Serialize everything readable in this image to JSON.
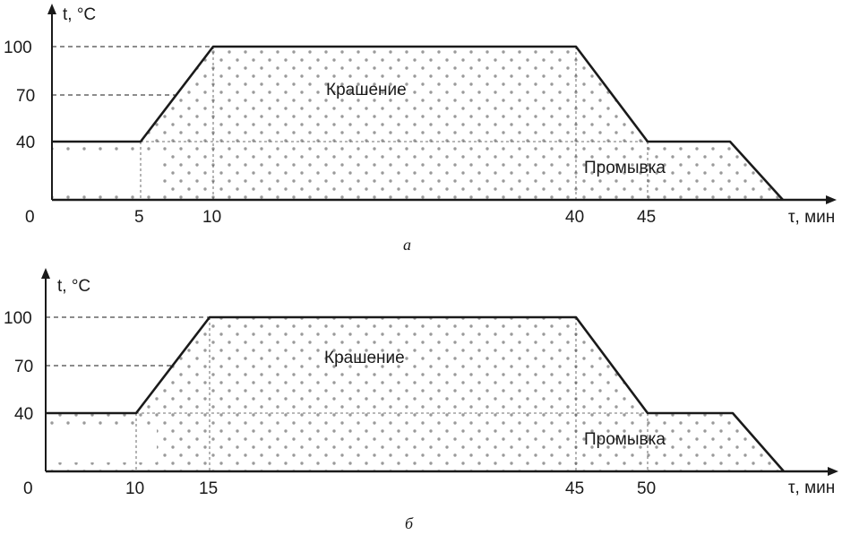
{
  "chart_data": [
    {
      "type": "area",
      "caption": "а",
      "ylabel": "t, °C",
      "xlabel": "τ, мин",
      "y_ticks": [
        "100",
        "70",
        "40",
        "0"
      ],
      "x_ticks": [
        "5",
        "10",
        "40",
        "45"
      ],
      "points": [
        [
          0,
          40
        ],
        [
          5,
          40
        ],
        [
          10,
          100
        ],
        [
          40,
          100
        ],
        [
          45,
          40
        ],
        [
          50,
          40
        ],
        [
          53,
          0
        ]
      ],
      "regions": [
        "Крашение",
        "Промывка"
      ]
    },
    {
      "type": "area",
      "caption": "б",
      "ylabel": "t, °C",
      "xlabel": "τ, мин",
      "y_ticks": [
        "100",
        "70",
        "40",
        "0"
      ],
      "x_ticks": [
        "10",
        "15",
        "45",
        "50"
      ],
      "points": [
        [
          0,
          40
        ],
        [
          10,
          40
        ],
        [
          15,
          100
        ],
        [
          45,
          100
        ],
        [
          50,
          40
        ],
        [
          55,
          40
        ],
        [
          58,
          0
        ]
      ],
      "regions": [
        "Крашение",
        "Промывка"
      ]
    }
  ]
}
